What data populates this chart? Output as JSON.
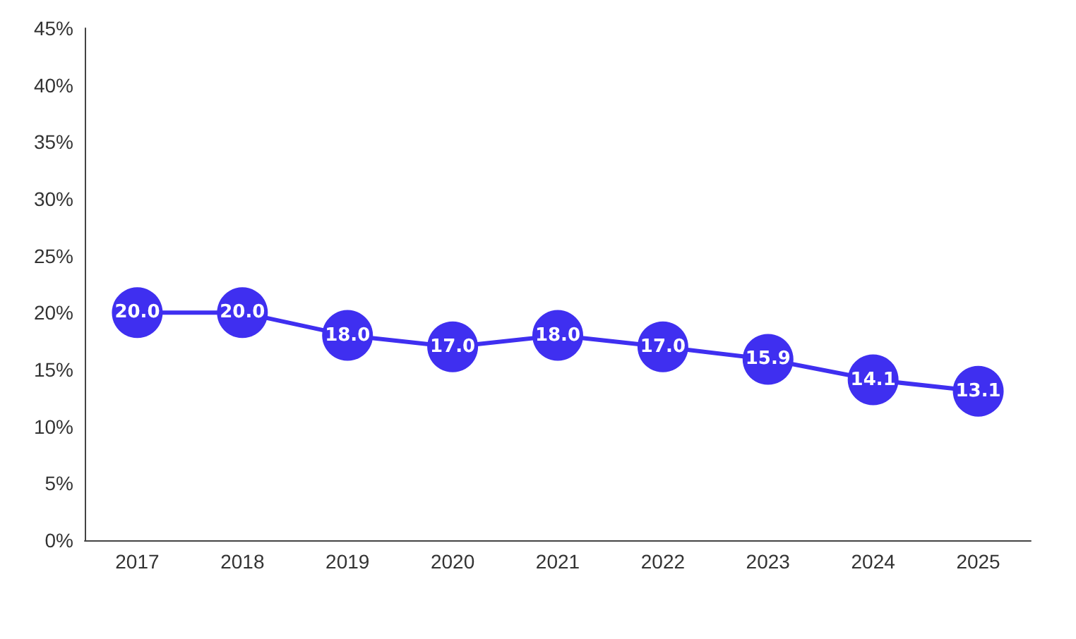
{
  "chart_data": {
    "type": "line",
    "categories": [
      "2017",
      "2018",
      "2019",
      "2020",
      "2021",
      "2022",
      "2023",
      "2024",
      "2025"
    ],
    "series": [
      {
        "color": "#3f2ff0",
        "values": [
          20.0,
          20.0,
          18.0,
          17.0,
          18.0,
          17.0,
          15.9,
          14.1,
          13.1
        ],
        "value_labels": [
          "20.0",
          "20.0",
          "18.0",
          "17.0",
          "18.0",
          "17.0",
          "15.9",
          "14.1",
          "13.1"
        ]
      }
    ],
    "ylim": [
      0,
      45
    ],
    "yticks": [
      {
        "value": 0,
        "label": "0%"
      },
      {
        "value": 5,
        "label": "5%"
      },
      {
        "value": 10,
        "label": "10%"
      },
      {
        "value": 15,
        "label": "15%"
      },
      {
        "value": 20,
        "label": "20%"
      },
      {
        "value": 25,
        "label": "25%"
      },
      {
        "value": 30,
        "label": "30%"
      },
      {
        "value": 35,
        "label": "35%"
      },
      {
        "value": 40,
        "label": "40%"
      },
      {
        "value": 45,
        "label": "45%"
      }
    ],
    "grid": false,
    "marker": "circle",
    "line_style": "solid"
  }
}
